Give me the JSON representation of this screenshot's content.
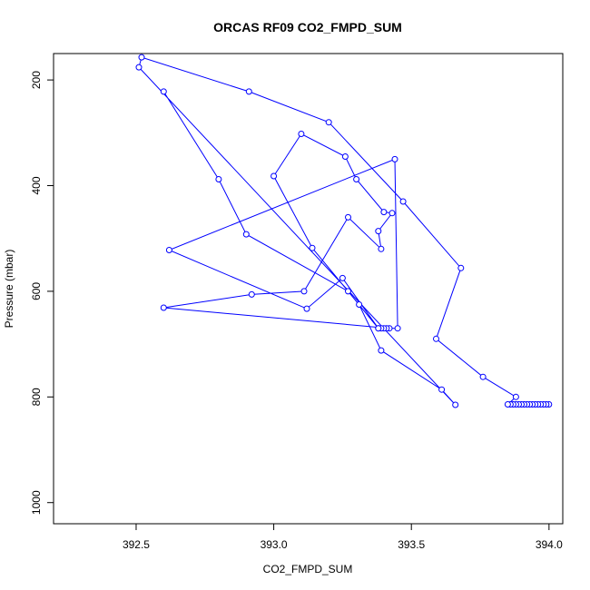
{
  "chart_data": {
    "type": "line",
    "title": "ORCAS RF09 CO2_FMPD_SUM",
    "xlabel": "CO2_FMPD_SUM",
    "ylabel": "Pressure (mbar)",
    "xlim": [
      392.2,
      394.05
    ],
    "ylim": [
      1040,
      150
    ],
    "y_reversed": true,
    "x_ticks": [
      392.5,
      393.0,
      393.5,
      394.0
    ],
    "x_tick_labels": [
      "392.5",
      "393.0",
      "393.5",
      "394.0"
    ],
    "y_ticks": [
      200,
      400,
      600,
      800,
      1000
    ],
    "y_tick_labels": [
      "200",
      "400",
      "600",
      "800",
      "1000"
    ],
    "grid": false,
    "line_color": "#0000ff",
    "x": [
      394.0,
      393.99,
      393.98,
      393.97,
      393.96,
      393.95,
      393.94,
      393.93,
      393.92,
      393.91,
      393.9,
      393.89,
      393.88,
      393.87,
      393.86,
      393.85,
      393.88,
      393.76,
      393.59,
      393.68,
      393.47,
      393.2,
      392.91,
      392.52,
      392.51,
      393.66,
      393.61,
      393.39,
      393.31,
      393.14,
      393.0,
      393.1,
      393.26,
      393.3,
      393.4,
      393.43,
      393.38,
      393.39,
      393.27,
      393.11,
      392.92,
      392.6,
      393.42,
      393.41,
      393.4,
      393.39,
      393.38,
      393.25,
      393.12,
      392.62,
      393.44,
      393.45,
      393.38,
      393.27,
      392.9,
      392.8,
      392.6
    ],
    "y": [
      814,
      814,
      814,
      814,
      814,
      814,
      814,
      814,
      814,
      814,
      814,
      814,
      814,
      814,
      814,
      814,
      800,
      762,
      690,
      556,
      430,
      280,
      222,
      157,
      176,
      815,
      786,
      712,
      625,
      518,
      382,
      302,
      345,
      388,
      450,
      452,
      486,
      520,
      460,
      600,
      606,
      631,
      670,
      670,
      670,
      670,
      670,
      575,
      633,
      522,
      350,
      670,
      670,
      600,
      492,
      388,
      222
    ]
  }
}
